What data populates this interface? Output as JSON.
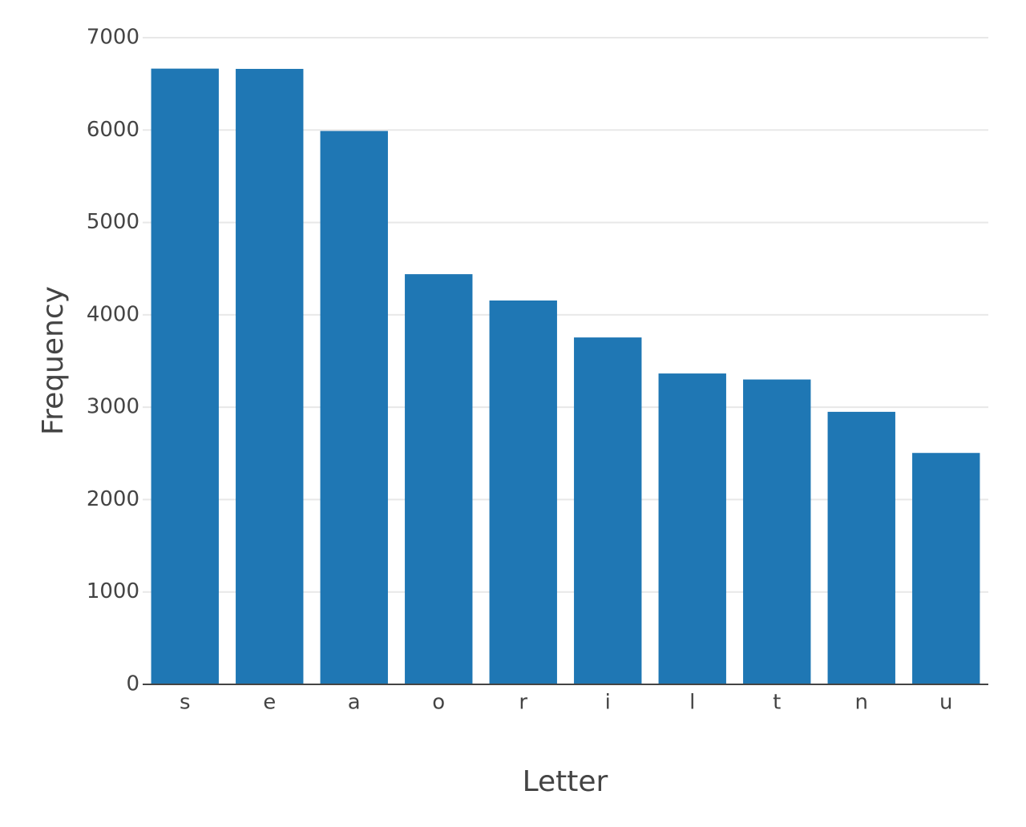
{
  "chart_data": {
    "type": "bar",
    "x_label": "Letter",
    "y_label": "Frequency",
    "categories": [
      "s",
      "e",
      "a",
      "o",
      "r",
      "i",
      "l",
      "t",
      "n",
      "u"
    ],
    "values": [
      6665,
      6662,
      5990,
      4440,
      4155,
      3755,
      3365,
      3300,
      2950,
      2505
    ],
    "color": "#1f77b4",
    "ylim": [
      0,
      7000
    ],
    "yticks": [
      0,
      1000,
      2000,
      3000,
      4000,
      5000,
      6000,
      7000
    ],
    "grid": true
  }
}
